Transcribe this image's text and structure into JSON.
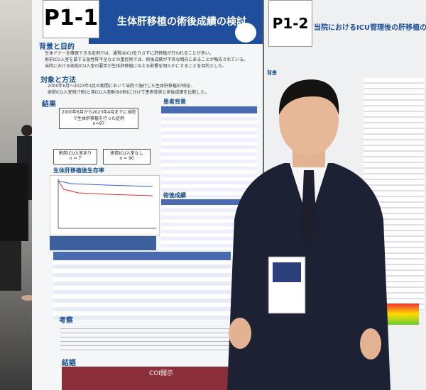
{
  "posters": [
    {
      "id": "P1-1",
      "title": "生体肝移植の術後成績の検討",
      "sections": [
        {
          "heading": "背景と目的",
          "lines": [
            "生体ドナーを確保できる症例では、通常はICUを介さずに肝移植が行われることが多い。",
            "術前ICU入室を要する急性肝不全などの重症例では、術後成績が不良な傾向にあることが報告されている。",
            "当院における術前ICU入室の要否が生体肝移植に与える影響を明らかにすることを目的とした。"
          ]
        },
        {
          "heading": "対象と方法",
          "lines": [
            "2000年6月〜2023年4月の期間において当院で施行した生体肝移植97例を、",
            "術前ICU入室例(7例)と非ICU入室群(90例)に分けて患者背景と術後成績を比較した。"
          ]
        },
        {
          "heading": "結果",
          "lines": []
        }
      ],
      "flow": {
        "top": "2000年6月から2023年4月までに当院で生体肝移植を行った症例",
        "top_n": "n=97",
        "left": "術前ICU入室あり",
        "left_n": "n = 7",
        "right": "術前ICU入室なし",
        "right_n": "n = 90"
      },
      "survival_title": "生体肝移植後生存率",
      "background_table": "患者背景",
      "outcome_table": "術後成績",
      "discussion": "考察",
      "conclusion": "結語",
      "coi": "COI開示"
    },
    {
      "id": "P1-2",
      "title": "当院におけるICU管理後の肝移植の治療",
      "heading": "背景"
    }
  ]
}
